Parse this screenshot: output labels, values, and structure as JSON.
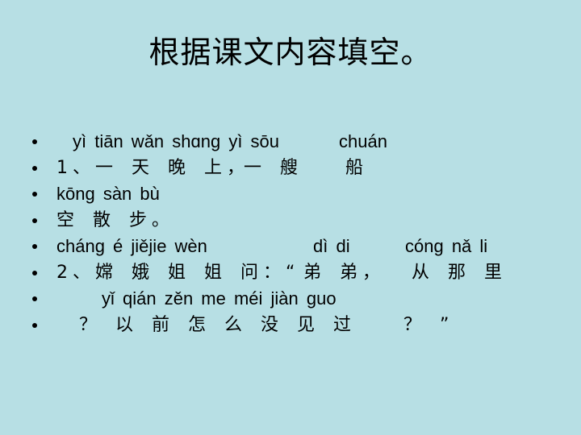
{
  "title": "根据课文内容填空。",
  "lines": [
    [
      "yì tiān wǎn shɑng yì sōu",
      "chuán"
    ],
    [
      "1、一 天 晚 上，",
      "一 艘",
      "船"
    ],
    [
      "kōng sàn bù"
    ],
    [
      "空 散 步。"
    ],
    [
      "cháng é jiějie wèn",
      "dì di",
      "cóng nǎ li"
    ],
    [
      "2、嫦 娥 姐 姐 问：“",
      "弟 弟，",
      "从 那 里"
    ],
    [
      "yǐ qián zěn me méi jiàn guo"
    ],
    [
      "？ 以 前  怎  么 没  见 过",
      "？ ”"
    ]
  ]
}
